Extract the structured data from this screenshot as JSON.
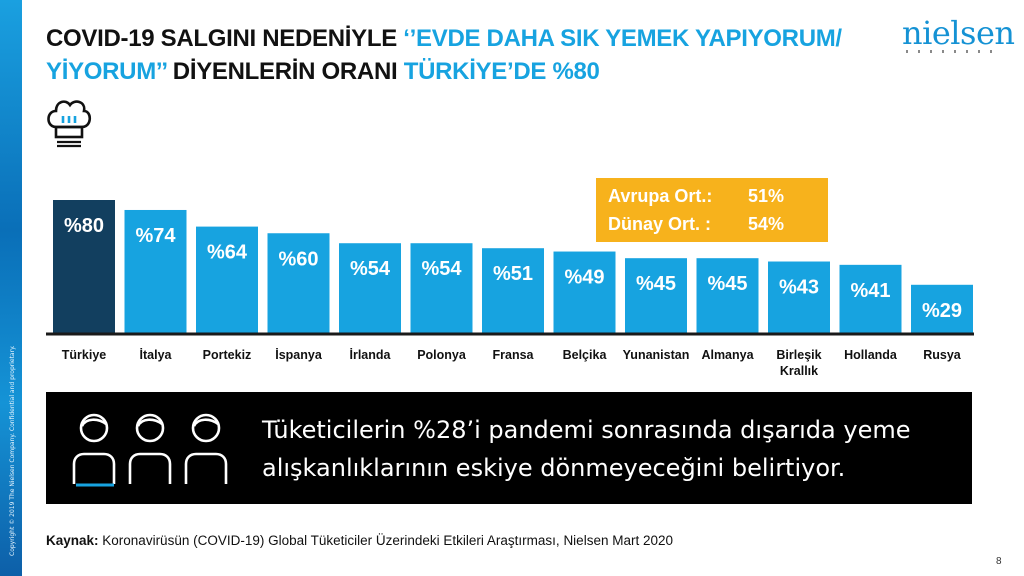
{
  "title": {
    "part1": "COVID-19 SALGINI NEDENİYLE ",
    "part2": "‘’EVDE DAHA SIK YEMEK YAPIYORUM/ YİYORUM’’",
    "part3": " DİYENLERİN ORANI ",
    "part4": "TÜRKİYE’DE %80"
  },
  "logo": "nielsen",
  "copyright": "Copyright © 2019 The Nielsen Company. Confidential and proprietary.",
  "icons": {
    "header": "chef-hat-icon",
    "people": "people-icon"
  },
  "averages": {
    "europe_label": "Avrupa Ort.:",
    "europe_value": "51%",
    "world_label": "Dünay Ort. :",
    "world_value": "54%"
  },
  "chart_data": {
    "type": "bar",
    "categories": [
      "Türkiye",
      "İtalya",
      "Portekiz",
      "İspanya",
      "İrlanda",
      "Polonya",
      "Fransa",
      "Belçika",
      "Yunanistan",
      "Almanya",
      "Birleşik Krallık",
      "Hollanda",
      "Rusya"
    ],
    "category_lines": [
      [
        "Türkiye"
      ],
      [
        "İtalya"
      ],
      [
        "Portekiz"
      ],
      [
        "İspanya"
      ],
      [
        "İrlanda"
      ],
      [
        "Polonya"
      ],
      [
        "Fransa"
      ],
      [
        "Belçika"
      ],
      [
        "Yunanistan"
      ],
      [
        "Almanya"
      ],
      [
        "Birleşik",
        "Krallık"
      ],
      [
        "Hollanda"
      ],
      [
        "Rusya"
      ]
    ],
    "values": [
      80,
      74,
      64,
      60,
      54,
      54,
      51,
      49,
      45,
      45,
      43,
      41,
      29
    ],
    "data_labels": [
      "%80",
      "%74",
      "%64",
      "%60",
      "%54",
      "%54",
      "%51",
      "%49",
      "%45",
      "%45",
      "%43",
      "%41",
      "%29"
    ],
    "highlight_index": 0,
    "colors": {
      "highlight": "#123f5f",
      "default": "#17a3e0",
      "baseline": "#1a1a1a"
    },
    "ylim": [
      0,
      80
    ],
    "legend": "none",
    "grid": false
  },
  "note": {
    "line1": "Tüketicilerin %28’i pandemi sonrasında dışarıda yeme",
    "line2": "alışkanlıklarının eskiye dönmeyeceğini belirtiyor."
  },
  "source": {
    "label": "Kaynak:",
    "text": " Koronavirüsün (COVID-19) Global Tüketiciler Üzerindeki Etkileri Araştırması, Nielsen Mart 2020"
  },
  "page_number": "8"
}
